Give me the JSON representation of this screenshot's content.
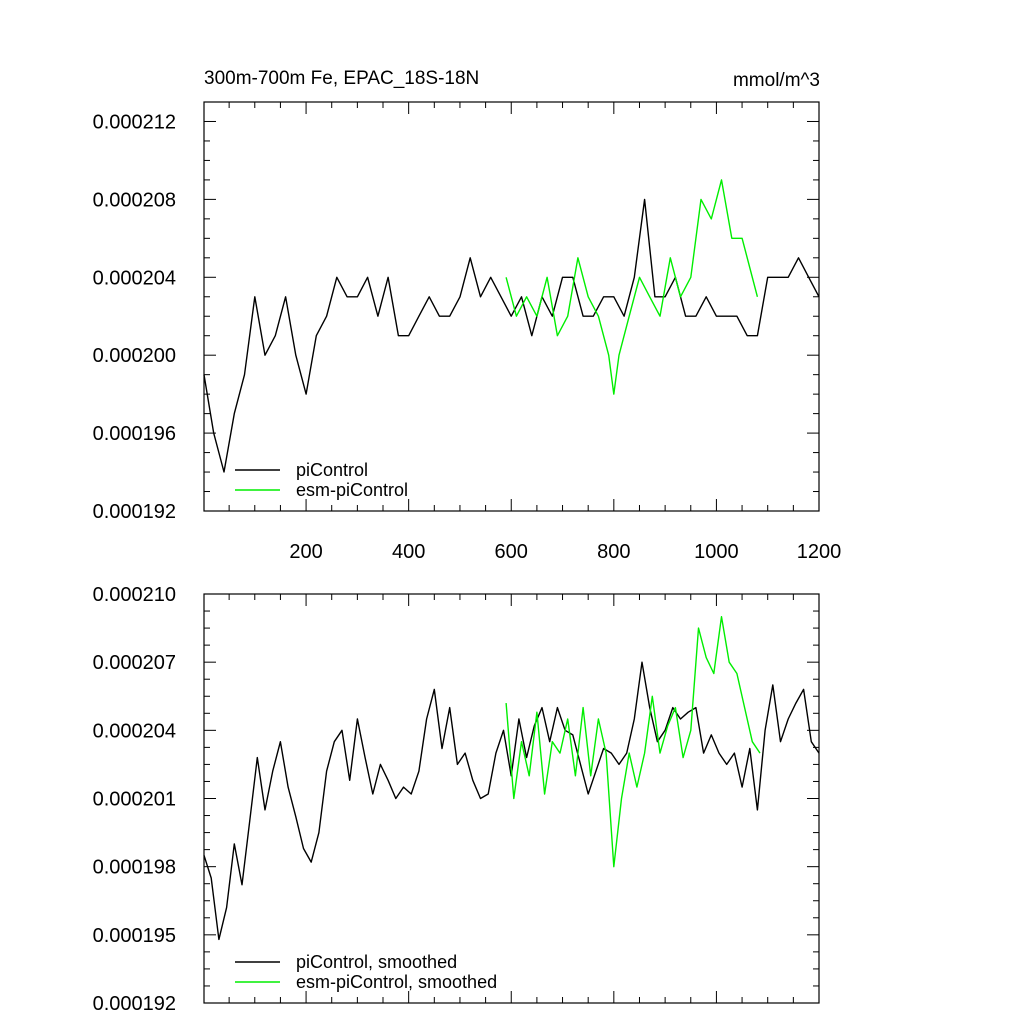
{
  "chart_data": [
    {
      "type": "line",
      "title": "300m-700m Fe, EPAC_18S-18N",
      "units": "mmol/m^3",
      "xlim": [
        1,
        1200
      ],
      "ylim": [
        0.000192,
        0.000213
      ],
      "x_ticks": [
        200,
        400,
        600,
        800,
        1000,
        1200
      ],
      "x_tick_labels": [
        "200",
        "400",
        "600",
        "800",
        "1000",
        "1200"
      ],
      "y_ticks": [
        0.000192,
        0.000196,
        0.0002,
        0.000204,
        0.000208,
        0.000212
      ],
      "y_tick_labels": [
        "0.000192",
        "0.000196",
        "0.000200",
        "0.000204",
        "0.000208",
        "0.000212"
      ],
      "legend_position": "bottom-left",
      "series": [
        {
          "name": "piControl",
          "color": "#000000",
          "x": [
            1,
            20,
            40,
            60,
            80,
            100,
            120,
            140,
            160,
            180,
            200,
            220,
            240,
            260,
            280,
            300,
            320,
            340,
            360,
            380,
            400,
            420,
            440,
            460,
            480,
            500,
            520,
            540,
            560,
            580,
            600,
            620,
            640,
            660,
            680,
            700,
            720,
            740,
            760,
            780,
            800,
            820,
            840,
            860,
            880,
            900,
            920,
            940,
            960,
            980,
            1000,
            1020,
            1040,
            1060,
            1080,
            1100,
            1120,
            1140,
            1160,
            1180,
            1200
          ],
          "y": [
            0.000199,
            0.000196,
            0.000194,
            0.000197,
            0.000199,
            0.000203,
            0.0002,
            0.000201,
            0.000203,
            0.0002,
            0.000198,
            0.000201,
            0.000202,
            0.000204,
            0.000203,
            0.000203,
            0.000204,
            0.000202,
            0.000204,
            0.000201,
            0.000201,
            0.000202,
            0.000203,
            0.000202,
            0.000202,
            0.000203,
            0.000205,
            0.000203,
            0.000204,
            0.000203,
            0.000202,
            0.000203,
            0.000201,
            0.000203,
            0.000202,
            0.000204,
            0.000204,
            0.000202,
            0.000202,
            0.000203,
            0.000203,
            0.000202,
            0.000204,
            0.000208,
            0.000203,
            0.000203,
            0.000204,
            0.000202,
            0.000202,
            0.000203,
            0.000202,
            0.000202,
            0.000202,
            0.000201,
            0.000201,
            0.000204,
            0.000204,
            0.000204,
            0.000205,
            0.000204,
            0.000203
          ]
        },
        {
          "name": "esm-piControl",
          "color": "#00ee00",
          "x": [
            590,
            610,
            630,
            650,
            670,
            690,
            710,
            730,
            750,
            770,
            790,
            800,
            810,
            830,
            850,
            870,
            890,
            910,
            930,
            950,
            970,
            990,
            1010,
            1030,
            1050,
            1070,
            1080
          ],
          "y": [
            0.000204,
            0.000202,
            0.000203,
            0.000202,
            0.000204,
            0.000201,
            0.000202,
            0.000205,
            0.000203,
            0.000202,
            0.0002,
            0.000198,
            0.0002,
            0.000202,
            0.000204,
            0.000203,
            0.000202,
            0.000205,
            0.000203,
            0.000204,
            0.000208,
            0.000207,
            0.000209,
            0.000206,
            0.000206,
            0.000204,
            0.000203
          ]
        }
      ]
    },
    {
      "type": "line",
      "xlim": [
        1,
        1200
      ],
      "ylim": [
        0.000192,
        0.00021
      ],
      "y_ticks": [
        0.000192,
        0.000195,
        0.000198,
        0.000201,
        0.000204,
        0.000207,
        0.00021
      ],
      "y_tick_labels": [
        "0.000192",
        "0.000195",
        "0.000198",
        "0.000201",
        "0.000204",
        "0.000207",
        "0.000210"
      ],
      "legend_position": "bottom-left",
      "series": [
        {
          "name": "piControl, smoothed",
          "color": "#000000",
          "x": [
            1,
            15,
            30,
            45,
            60,
            75,
            90,
            105,
            120,
            135,
            150,
            165,
            180,
            195,
            210,
            225,
            240,
            255,
            270,
            285,
            300,
            315,
            330,
            345,
            360,
            375,
            390,
            405,
            420,
            435,
            450,
            465,
            480,
            495,
            510,
            525,
            540,
            555,
            570,
            585,
            600,
            615,
            630,
            645,
            660,
            675,
            690,
            705,
            720,
            735,
            750,
            765,
            780,
            795,
            810,
            825,
            840,
            855,
            870,
            885,
            900,
            915,
            930,
            945,
            960,
            975,
            990,
            1005,
            1020,
            1035,
            1050,
            1065,
            1080,
            1095,
            1110,
            1125,
            1140,
            1155,
            1170,
            1185,
            1200
          ],
          "y": [
            0.0001985,
            0.0001975,
            0.0001948,
            0.0001962,
            0.000199,
            0.0001972,
            0.0002,
            0.0002028,
            0.0002005,
            0.0002022,
            0.0002035,
            0.0002015,
            0.0002002,
            0.0001988,
            0.0001982,
            0.0001995,
            0.0002022,
            0.0002035,
            0.000204,
            0.0002018,
            0.0002045,
            0.0002028,
            0.0002012,
            0.0002025,
            0.0002018,
            0.000201,
            0.0002015,
            0.0002012,
            0.0002022,
            0.0002045,
            0.0002058,
            0.0002032,
            0.000205,
            0.0002025,
            0.000203,
            0.0002018,
            0.000201,
            0.0002012,
            0.000203,
            0.000204,
            0.000202,
            0.0002045,
            0.0002028,
            0.0002042,
            0.000205,
            0.0002035,
            0.000205,
            0.000204,
            0.0002038,
            0.0002025,
            0.0002012,
            0.0002022,
            0.0002032,
            0.000203,
            0.0002025,
            0.000203,
            0.0002045,
            0.000207,
            0.000205,
            0.0002035,
            0.000204,
            0.000205,
            0.0002045,
            0.0002048,
            0.000205,
            0.000203,
            0.0002038,
            0.000203,
            0.0002025,
            0.000203,
            0.0002015,
            0.0002032,
            0.0002005,
            0.000204,
            0.000206,
            0.0002035,
            0.0002045,
            0.0002052,
            0.0002058,
            0.0002035,
            0.000203
          ]
        },
        {
          "name": "esm-piControl, smoothed",
          "color": "#00ee00",
          "x": [
            590,
            605,
            620,
            635,
            650,
            665,
            680,
            695,
            710,
            725,
            740,
            755,
            770,
            785,
            800,
            815,
            830,
            845,
            860,
            875,
            890,
            905,
            920,
            935,
            950,
            965,
            980,
            995,
            1010,
            1025,
            1040,
            1055,
            1070,
            1085
          ],
          "y": [
            0.0002052,
            0.000201,
            0.0002035,
            0.000202,
            0.0002048,
            0.0002012,
            0.0002035,
            0.000203,
            0.0002045,
            0.000202,
            0.000205,
            0.000202,
            0.0002045,
            0.000203,
            0.000198,
            0.000201,
            0.000203,
            0.0002015,
            0.000203,
            0.0002055,
            0.000203,
            0.0002042,
            0.000205,
            0.0002028,
            0.000204,
            0.0002085,
            0.0002072,
            0.0002065,
            0.000209,
            0.000207,
            0.0002065,
            0.000205,
            0.0002035,
            0.000203
          ]
        }
      ]
    }
  ]
}
